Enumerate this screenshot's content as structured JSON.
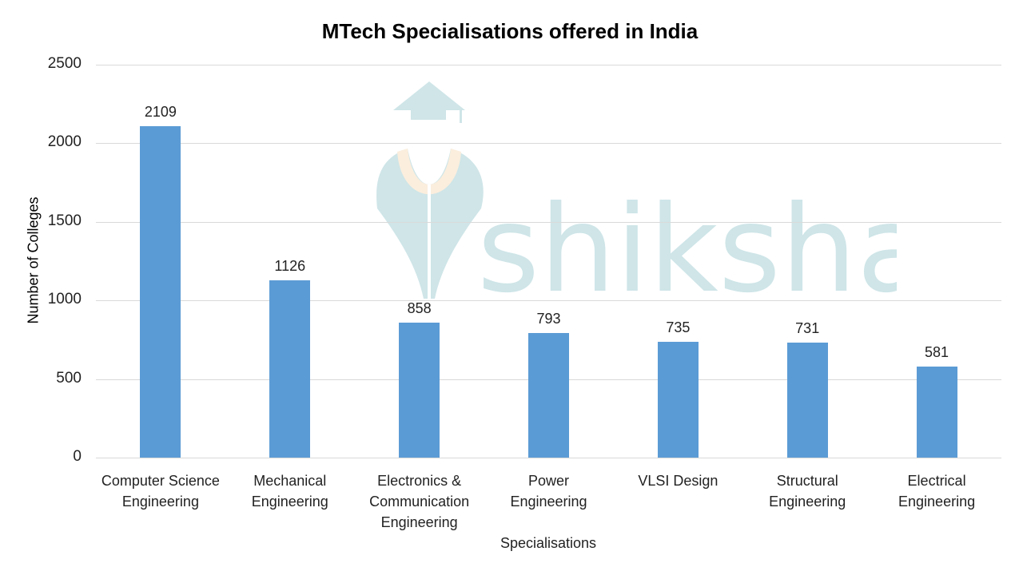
{
  "chart_data": {
    "type": "bar",
    "title": "MTech Specialisations offered in India",
    "xlabel": "Specialisations",
    "ylabel": "Number of Colleges",
    "ylim": [
      0,
      2500
    ],
    "yticks": [
      0,
      500,
      1000,
      1500,
      2000,
      2500
    ],
    "grid": true,
    "legend": null,
    "bar_color": "#5b9bd5",
    "categories": [
      "Computer Science Engineering",
      "Mechanical Engineering",
      "Electronics & Communication Engineering",
      "Power Engineering",
      "VLSI Design",
      "Structural Engineering",
      "Electrical Engineering"
    ],
    "category_labels_wrapped": [
      "Computer Science\nEngineering",
      "Mechanical\nEngineering",
      "Electronics &\nCommunication\nEngineering",
      "Power\nEngineering",
      "VLSI Design",
      "Structural\nEngineering",
      "Electrical\nEngineering"
    ],
    "values": [
      2109,
      1126,
      858,
      793,
      735,
      731,
      581
    ],
    "data_labels": [
      "2109",
      "1126",
      "858",
      "793",
      "735",
      "731",
      "581"
    ]
  },
  "watermark": {
    "text": "shiksha",
    "icon": "graduation-cap-pen-nib-logo",
    "color": "#cfe5e8",
    "accent_color": "#fbeedd"
  }
}
